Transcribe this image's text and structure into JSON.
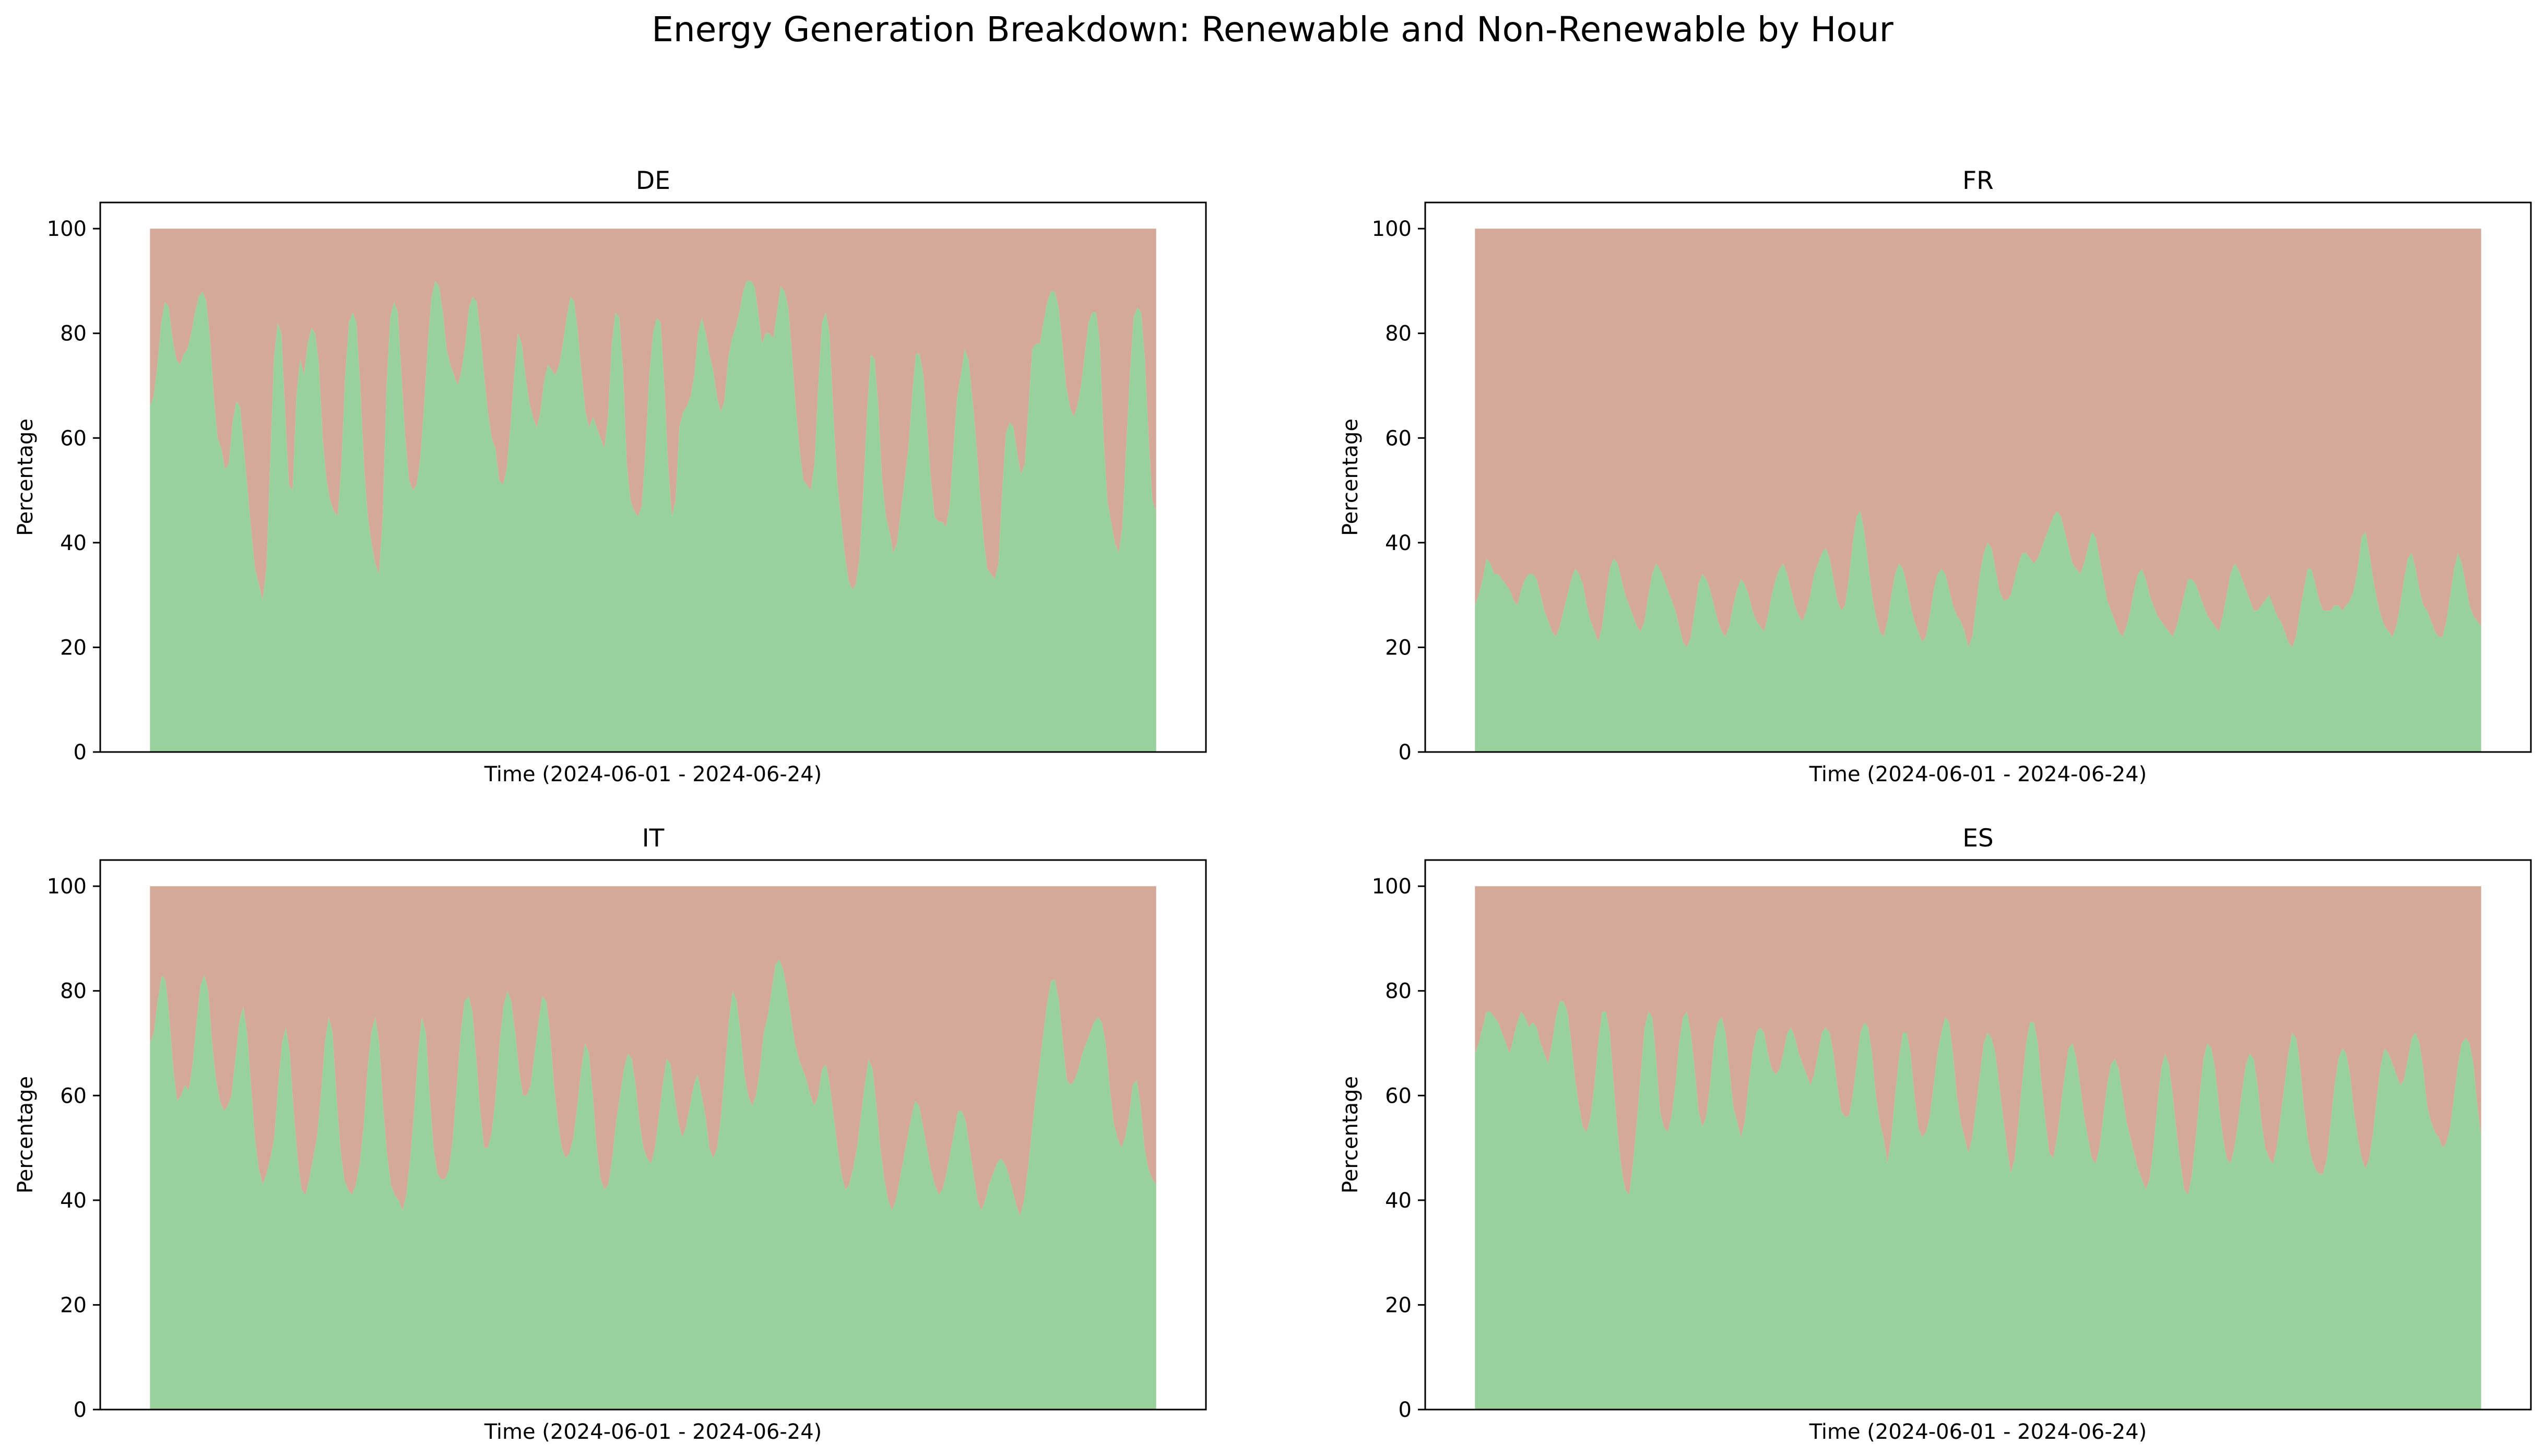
{
  "figure": {
    "title": "Energy Generation Breakdown: Renewable and Non-Renewable by Hour"
  },
  "colors": {
    "renewable": "#99d19c",
    "non_renewable": "#d5a99a",
    "axis": "#000000",
    "background": "#ffffff"
  },
  "chart_data": [
    {
      "type": "area",
      "stacked": true,
      "title": "DE",
      "xlabel": "Time (2024-06-01 - 2024-06-24)",
      "ylabel": "Percentage",
      "ylim": [
        0,
        105
      ],
      "yticks": [
        0,
        20,
        40,
        60,
        80,
        100
      ],
      "grid": false,
      "legend": "none",
      "x_start": "2024-06-01",
      "x_end": "2024-06-24",
      "sampling": "every 3 hours",
      "series": [
        {
          "values": [
            66,
            68,
            74,
            82,
            86,
            85,
            79,
            75,
            74,
            76,
            77,
            80,
            84,
            87,
            88,
            86,
            79,
            68,
            60,
            58,
            54,
            55,
            63,
            67,
            66,
            58,
            50,
            42,
            35,
            32,
            29,
            35,
            55,
            75,
            82,
            80,
            65,
            51,
            50,
            68,
            75,
            72,
            78,
            81,
            80,
            74,
            60,
            52,
            48,
            46,
            45,
            55,
            72,
            82,
            84,
            82,
            70,
            55,
            45,
            40,
            36,
            34,
            45,
            70,
            83,
            86,
            84,
            72,
            60,
            52,
            50,
            51,
            56,
            66,
            78,
            87,
            90,
            89,
            84,
            77,
            74,
            72,
            70,
            73,
            78,
            85,
            87,
            86,
            80,
            72,
            65,
            60,
            58,
            52,
            51,
            54,
            62,
            72,
            80,
            78,
            72,
            67,
            64,
            62,
            65,
            71,
            74,
            73,
            72,
            74,
            78,
            83,
            87,
            86,
            80,
            72,
            65,
            62,
            64,
            62,
            60,
            58,
            64,
            78,
            84,
            83,
            73,
            55,
            48,
            46,
            45,
            47,
            58,
            72,
            80,
            83,
            82,
            70,
            55,
            45,
            48,
            62,
            65,
            66,
            68,
            72,
            80,
            83,
            80,
            76,
            73,
            68,
            65,
            67,
            75,
            79,
            81,
            84,
            88,
            90,
            90,
            89,
            84,
            78,
            80,
            80,
            79,
            84,
            89,
            88,
            85,
            76,
            66,
            58,
            52,
            51,
            50,
            55,
            70,
            82,
            84,
            80,
            65,
            52,
            45,
            38,
            33,
            31,
            32,
            37,
            50,
            65,
            76,
            75,
            66,
            52,
            45,
            42,
            38,
            40,
            46,
            52,
            58,
            68,
            76,
            76,
            72,
            62,
            52,
            45,
            44,
            44,
            43,
            47,
            58,
            68,
            72,
            77,
            75,
            68,
            60,
            50,
            41,
            35,
            34,
            33,
            36,
            50,
            61,
            63,
            62,
            57,
            53,
            55,
            66,
            77,
            78,
            78,
            82,
            86,
            88,
            88,
            85,
            78,
            70,
            66,
            64,
            66,
            70,
            76,
            82,
            84,
            84,
            78,
            60,
            48,
            44,
            40,
            38,
            43,
            58,
            72,
            83,
            85,
            84,
            75,
            60,
            48,
            46
          ]
        }
      ]
    },
    {
      "type": "area",
      "stacked": true,
      "title": "FR",
      "xlabel": "Time (2024-06-01 - 2024-06-24)",
      "ylabel": "Percentage",
      "ylim": [
        0,
        105
      ],
      "yticks": [
        0,
        20,
        40,
        60,
        80,
        100
      ],
      "grid": false,
      "legend": "none",
      "x_start": "2024-06-01",
      "x_end": "2024-06-24",
      "sampling": "every 3 hours",
      "series": [
        {
          "values": [
            28,
            30,
            33,
            37,
            36,
            34,
            34,
            33,
            32,
            31,
            29,
            28,
            31,
            33,
            34,
            34,
            33,
            30,
            27,
            25,
            23,
            22,
            24,
            27,
            30,
            33,
            35,
            34,
            32,
            28,
            25,
            23,
            21,
            24,
            30,
            35,
            37,
            36,
            33,
            30,
            28,
            26,
            24,
            23,
            25,
            30,
            34,
            36,
            35,
            33,
            31,
            29,
            27,
            24,
            21,
            20,
            22,
            27,
            32,
            34,
            33,
            31,
            28,
            25,
            23,
            22,
            24,
            28,
            31,
            33,
            32,
            30,
            27,
            25,
            24,
            23,
            26,
            30,
            33,
            35,
            36,
            34,
            31,
            28,
            26,
            25,
            27,
            30,
            34,
            36,
            38,
            39,
            37,
            33,
            29,
            27,
            28,
            33,
            40,
            45,
            46,
            42,
            36,
            30,
            26,
            23,
            22,
            25,
            30,
            34,
            36,
            35,
            32,
            28,
            25,
            23,
            21,
            22,
            26,
            31,
            34,
            35,
            34,
            31,
            28,
            26,
            25,
            23,
            20,
            22,
            28,
            34,
            38,
            40,
            39,
            35,
            31,
            29,
            29,
            30,
            33,
            36,
            38,
            38,
            37,
            36,
            37,
            39,
            41,
            43,
            45,
            46,
            45,
            42,
            39,
            36,
            35,
            34,
            36,
            39,
            42,
            41,
            37,
            33,
            29,
            27,
            25,
            23,
            22,
            24,
            27,
            31,
            34,
            35,
            33,
            30,
            28,
            26,
            25,
            24,
            23,
            22,
            24,
            27,
            30,
            33,
            33,
            32,
            30,
            28,
            26,
            25,
            24,
            23,
            26,
            30,
            34,
            36,
            35,
            33,
            31,
            29,
            27,
            27,
            28,
            29,
            30,
            28,
            26,
            25,
            23,
            21,
            20,
            22,
            27,
            31,
            35,
            35,
            32,
            29,
            27,
            27,
            27,
            28,
            28,
            27,
            28,
            29,
            31,
            35,
            41,
            42,
            38,
            33,
            29,
            26,
            24,
            23,
            22,
            24,
            28,
            33,
            37,
            38,
            35,
            31,
            28,
            27,
            25,
            23,
            22,
            22,
            25,
            30,
            35,
            38,
            36,
            32,
            28,
            26,
            25,
            24
          ]
        }
      ]
    },
    {
      "type": "area",
      "stacked": true,
      "title": "IT",
      "xlabel": "Time (2024-06-01 - 2024-06-24)",
      "ylabel": "Percentage",
      "ylim": [
        0,
        105
      ],
      "yticks": [
        0,
        20,
        40,
        60,
        80,
        100
      ],
      "grid": false,
      "legend": "none",
      "x_start": "2024-06-01",
      "x_end": "2024-06-24",
      "sampling": "every 3 hours",
      "series": [
        {
          "values": [
            70,
            72,
            78,
            83,
            82,
            75,
            65,
            59,
            60,
            62,
            61,
            66,
            74,
            81,
            83,
            80,
            70,
            63,
            59,
            57,
            58,
            60,
            67,
            74,
            77,
            72,
            62,
            52,
            46,
            43,
            45,
            48,
            52,
            62,
            70,
            73,
            68,
            57,
            48,
            42,
            41,
            44,
            48,
            52,
            60,
            70,
            75,
            72,
            60,
            50,
            44,
            42,
            41,
            43,
            47,
            54,
            65,
            72,
            75,
            70,
            58,
            49,
            43,
            41,
            40,
            38,
            41,
            48,
            57,
            68,
            75,
            72,
            60,
            50,
            45,
            44,
            44,
            46,
            52,
            62,
            72,
            78,
            79,
            76,
            67,
            57,
            50,
            50,
            53,
            60,
            70,
            77,
            80,
            78,
            72,
            65,
            60,
            60,
            62,
            68,
            74,
            79,
            78,
            72,
            62,
            55,
            50,
            48,
            49,
            52,
            58,
            65,
            70,
            68,
            60,
            50,
            44,
            42,
            43,
            48,
            55,
            60,
            65,
            68,
            67,
            62,
            55,
            50,
            48,
            47,
            50,
            56,
            62,
            67,
            66,
            60,
            55,
            52,
            54,
            58,
            62,
            64,
            60,
            56,
            50,
            48,
            50,
            56,
            65,
            74,
            80,
            78,
            72,
            64,
            60,
            58,
            60,
            65,
            72,
            75,
            80,
            85,
            86,
            84,
            80,
            75,
            70,
            67,
            65,
            63,
            60,
            58,
            60,
            65,
            66,
            62,
            56,
            50,
            45,
            42,
            43,
            46,
            50,
            56,
            62,
            67,
            65,
            58,
            50,
            44,
            40,
            38,
            40,
            44,
            48,
            52,
            56,
            59,
            58,
            54,
            50,
            46,
            43,
            41,
            42,
            45,
            49,
            53,
            57,
            57,
            55,
            50,
            45,
            40,
            38,
            40,
            43,
            45,
            47,
            48,
            47,
            45,
            42,
            39,
            37,
            40,
            46,
            53,
            60,
            66,
            72,
            78,
            82,
            82,
            78,
            70,
            63,
            62,
            63,
            65,
            68,
            70,
            72,
            74,
            75,
            74,
            70,
            62,
            55,
            52,
            50,
            52,
            56,
            62,
            63,
            58,
            50,
            46,
            44,
            43
          ]
        }
      ]
    },
    {
      "type": "area",
      "stacked": true,
      "title": "ES",
      "xlabel": "Time (2024-06-01 - 2024-06-24)",
      "ylabel": "Percentage",
      "ylim": [
        0,
        105
      ],
      "yticks": [
        0,
        20,
        40,
        60,
        80,
        100
      ],
      "grid": false,
      "legend": "none",
      "x_start": "2024-06-01",
      "x_end": "2024-06-24",
      "sampling": "every 3 hours",
      "series": [
        {
          "values": [
            68,
            70,
            73,
            76,
            76,
            75,
            74,
            72,
            70,
            68,
            71,
            74,
            76,
            75,
            73,
            74,
            73,
            70,
            68,
            66,
            70,
            75,
            78,
            78,
            76,
            70,
            63,
            58,
            54,
            53,
            56,
            62,
            70,
            76,
            76,
            72,
            62,
            53,
            46,
            42,
            41,
            47,
            55,
            64,
            73,
            76,
            75,
            67,
            57,
            54,
            53,
            56,
            62,
            70,
            75,
            76,
            72,
            65,
            57,
            54,
            56,
            62,
            70,
            74,
            75,
            72,
            65,
            58,
            55,
            52,
            55,
            62,
            68,
            72,
            73,
            72,
            68,
            65,
            64,
            65,
            68,
            72,
            73,
            71,
            68,
            66,
            64,
            62,
            64,
            68,
            72,
            73,
            72,
            68,
            62,
            57,
            56,
            56,
            60,
            66,
            72,
            74,
            73,
            68,
            60,
            55,
            52,
            47,
            52,
            60,
            67,
            72,
            72,
            68,
            60,
            54,
            52,
            53,
            56,
            62,
            68,
            72,
            75,
            74,
            68,
            60,
            55,
            52,
            49,
            52,
            58,
            64,
            70,
            72,
            71,
            68,
            62,
            56,
            50,
            45,
            48,
            55,
            63,
            70,
            74,
            74,
            70,
            62,
            55,
            49,
            48,
            52,
            58,
            64,
            69,
            70,
            67,
            62,
            56,
            52,
            48,
            47,
            50,
            56,
            62,
            66,
            67,
            65,
            60,
            55,
            52,
            49,
            46,
            44,
            42,
            44,
            50,
            58,
            65,
            68,
            66,
            60,
            53,
            47,
            42,
            41,
            45,
            52,
            60,
            67,
            70,
            69,
            65,
            58,
            52,
            48,
            47,
            50,
            55,
            61,
            66,
            68,
            67,
            62,
            55,
            50,
            48,
            47,
            50,
            56,
            62,
            68,
            72,
            71,
            66,
            58,
            52,
            48,
            46,
            45,
            45,
            48,
            55,
            62,
            67,
            69,
            68,
            64,
            57,
            52,
            48,
            46,
            48,
            53,
            60,
            66,
            69,
            68,
            66,
            64,
            62,
            63,
            67,
            71,
            72,
            70,
            65,
            58,
            55,
            53,
            52,
            50,
            51,
            54,
            60,
            66,
            70,
            71,
            70,
            66,
            58,
            52
          ]
        }
      ]
    }
  ]
}
